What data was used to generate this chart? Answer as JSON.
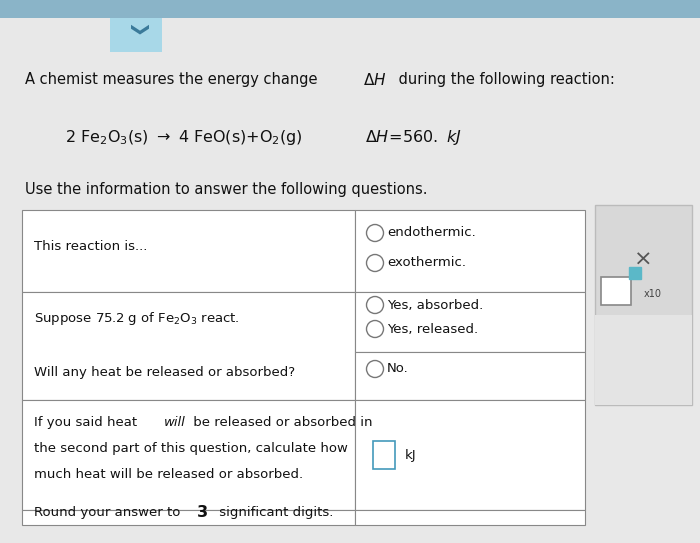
{
  "bg_color": "#e8e8e8",
  "white": "#ffffff",
  "black": "#111111",
  "dark_gray": "#444444",
  "blue_header": "#7bc4d4",
  "blue_light": "#a8d8e8",
  "panel_bg": "#d4d4d4",
  "panel_border": "#bbbbbb",
  "teal_box": "#5bb8c8",
  "table_border": "#888888",
  "title": "A chemist measures the energy change ",
  "delta_h_italic": "ΔH",
  "title_end": " during the following reaction:",
  "reaction_left": "2 Fe$_2$O$_3$(s) $\\rightarrow$ 4 FeO(s)+O$_2$(g)",
  "delta_h_eq": "ΔH = 560. kJ",
  "instruction": "Use the information to answer the following questions.",
  "row1_left": "This reaction is...",
  "row1_right": [
    "endothermic.",
    "exothermic."
  ],
  "row2_left": "Suppose 75.2 g of Fe$_2$O$_3$ react.",
  "row2_right": [
    "Yes, absorbed.",
    "Yes, released."
  ],
  "row3_left": "Will any heat be released or absorbed?",
  "row3_right": [
    "No."
  ],
  "row4_left_pre": "If you said heat ",
  "row4_left_italic": "will",
  "row4_left_post": " be released or absorbed in",
  "row4_left_line2": "the second part of this question, calculate how",
  "row4_left_line3": "much heat will be released or absorbed.",
  "row4_right": "kJ",
  "row5_left_pre": "Round your answer to ",
  "row5_left_num": "3",
  "row5_left_post": " significant digits.",
  "figw": 7.0,
  "figh": 5.43,
  "dpi": 100
}
